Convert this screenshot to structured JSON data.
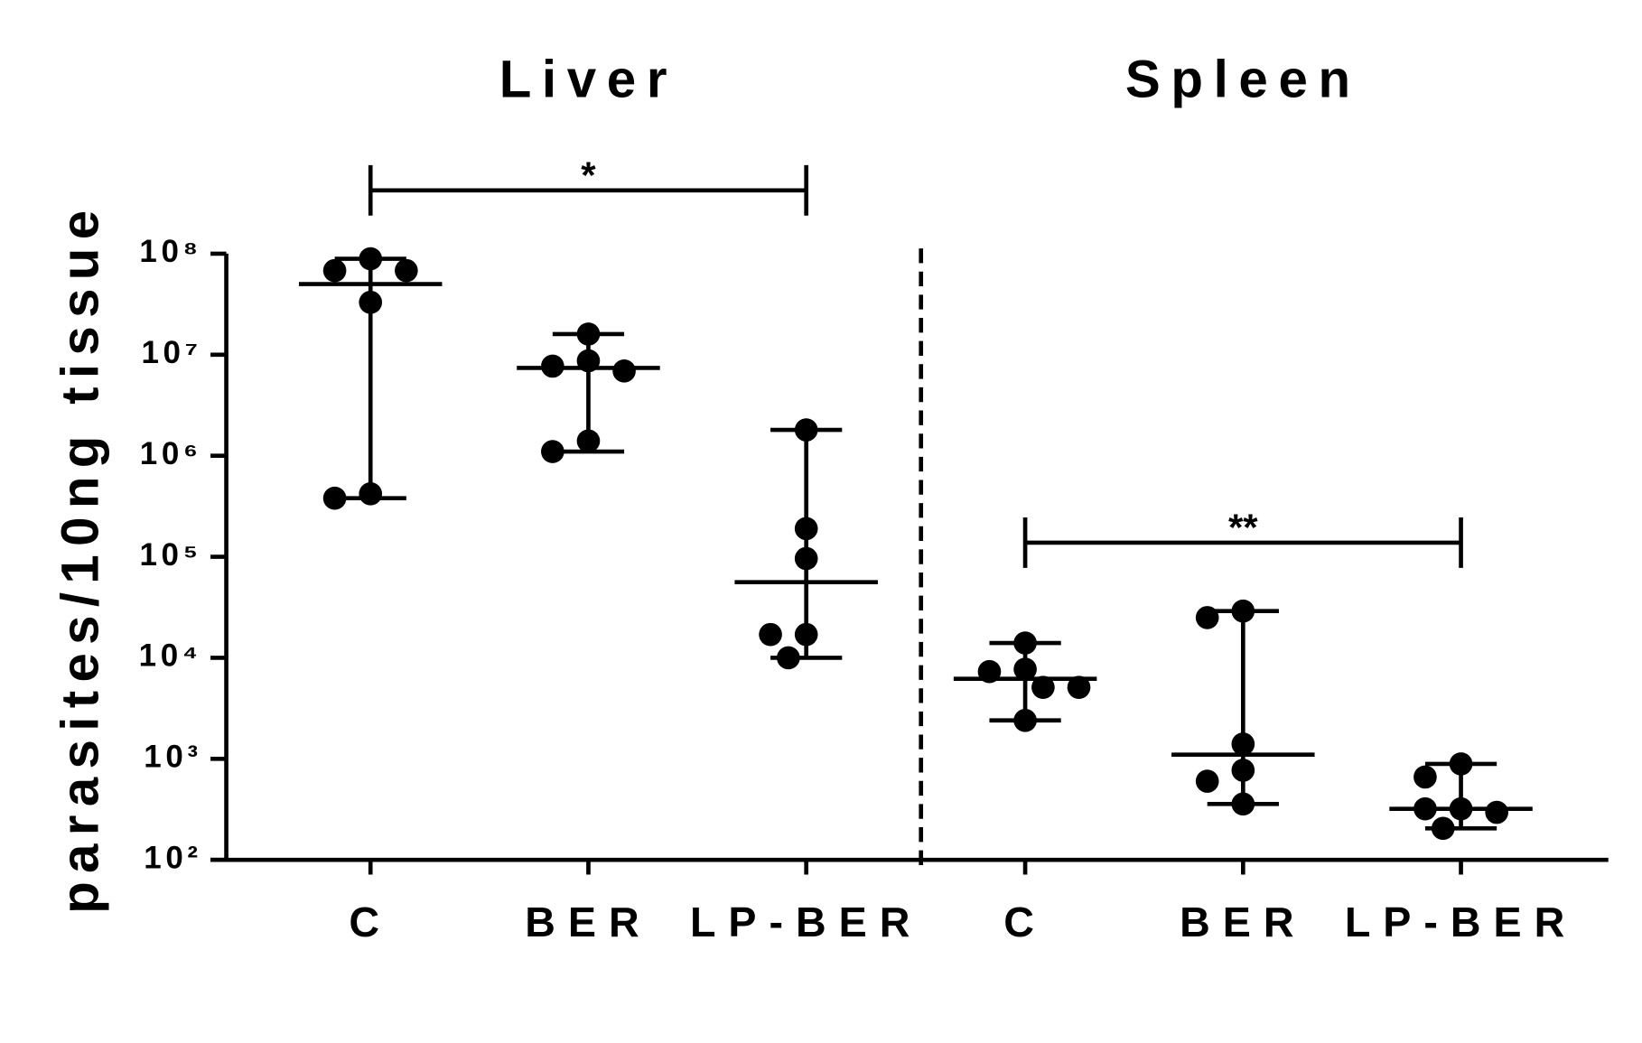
{
  "chart_data": [
    {
      "type": "dotplot",
      "title": "Liver",
      "ylabel": "parasites/10ng tissue",
      "log": true,
      "color": "#000000",
      "categories": [
        "C",
        "BER",
        "LP-BER"
      ],
      "values": [
        [
          68000000,
          89000000,
          68000000,
          33000000,
          380000,
          420000
        ],
        [
          16000000,
          7700000,
          6900000,
          8700000,
          1100000,
          1400000
        ],
        [
          1800000,
          190000,
          96000,
          17000,
          17000,
          10000
        ]
      ],
      "medians": [
        50000000,
        7400000,
        56000
      ],
      "ylim": [
        100,
        100000000
      ],
      "yticks": [
        {
          "value": 100,
          "label": "10²"
        },
        {
          "value": 1000,
          "label": "10³"
        },
        {
          "value": 10000,
          "label": "10⁴"
        },
        {
          "value": 100000,
          "label": "10⁵"
        },
        {
          "value": 1000000,
          "label": "10⁶"
        },
        {
          "value": 10000000,
          "label": "10⁷"
        },
        {
          "value": 100000000,
          "label": "10⁸"
        }
      ],
      "significance": {
        "label": "*",
        "from": 0,
        "to": 2
      }
    },
    {
      "type": "dotplot",
      "title": "Spleen",
      "log": true,
      "color": "#000000",
      "categories": [
        "C",
        "BER",
        "LP-BER"
      ],
      "values": [
        [
          7700,
          5100,
          7300,
          14000,
          5100,
          2400
        ],
        [
          25000,
          29000,
          1400,
          770,
          600,
          357
        ],
        [
          890,
          660,
          320,
          295,
          320,
          205
        ]
      ],
      "medians": [
        6200,
        1100,
        320
      ],
      "ylim": [
        100,
        100000000
      ],
      "significance": {
        "label": "**",
        "from": 0,
        "to": 2
      }
    }
  ]
}
